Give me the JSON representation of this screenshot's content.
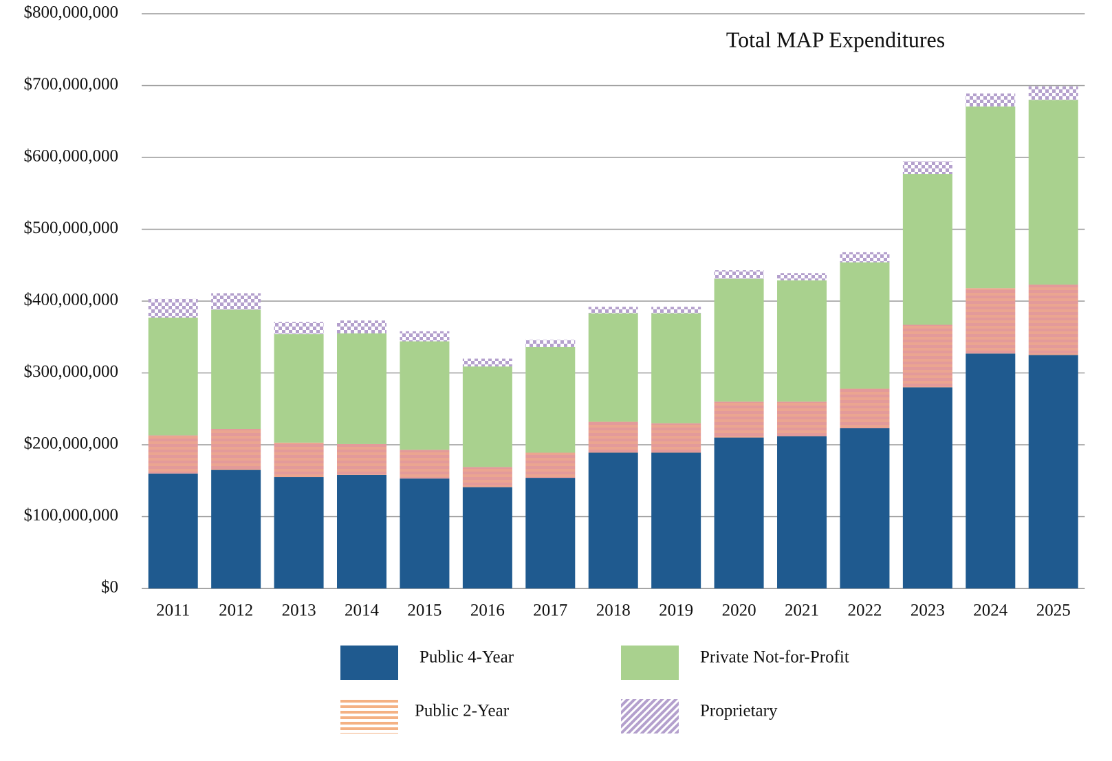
{
  "chart_data": {
    "type": "stacked_bar",
    "title": "Total MAP Expenditures",
    "categories": [
      "2011",
      "2012",
      "2013",
      "2014",
      "2015",
      "2016",
      "2017",
      "2018",
      "2019",
      "2020",
      "2021",
      "2022",
      "2023",
      "2024",
      "2025"
    ],
    "series": [
      {
        "name": "Public 4-Year",
        "color": "#1f5a8f",
        "pattern": "solid",
        "values": [
          160000000,
          165000000,
          155000000,
          158000000,
          153000000,
          141000000,
          154000000,
          189000000,
          189000000,
          210000000,
          212000000,
          223000000,
          280000000,
          327000000,
          325000000
        ]
      },
      {
        "name": "Public 2-Year",
        "color": "#f4b183",
        "pattern": "horizontal",
        "values": [
          53000000,
          57000000,
          48000000,
          43000000,
          40000000,
          28000000,
          35000000,
          43000000,
          41000000,
          50000000,
          48000000,
          55000000,
          87000000,
          91000000,
          98000000
        ]
      },
      {
        "name": "Private Not-for-Profit",
        "color": "#a9d18e",
        "pattern": "solid",
        "values": [
          164000000,
          166000000,
          151000000,
          154000000,
          151000000,
          140000000,
          147000000,
          151000000,
          153000000,
          171000000,
          169000000,
          176000000,
          210000000,
          253000000,
          257000000
        ]
      },
      {
        "name": "Proprietary",
        "color": "#b4a0cd",
        "pattern": "diagonal",
        "values": [
          26000000,
          23000000,
          17000000,
          18000000,
          14000000,
          11000000,
          10000000,
          9000000,
          9000000,
          12000000,
          10000000,
          14000000,
          18000000,
          18000000,
          19000000
        ]
      }
    ],
    "ylim": [
      0,
      800000000
    ],
    "yticks": [
      {
        "value": 0,
        "label": "$0"
      },
      {
        "value": 100000000,
        "label": "$100,000,000"
      },
      {
        "value": 200000000,
        "label": "$200,000,000"
      },
      {
        "value": 300000000,
        "label": "$300,000,000"
      },
      {
        "value": 400000000,
        "label": "$400,000,000"
      },
      {
        "value": 500000000,
        "label": "$500,000,000"
      },
      {
        "value": 600000000,
        "label": "$600,000,000"
      },
      {
        "value": 700000000,
        "label": "$700,000,000"
      },
      {
        "value": 800000000,
        "label": "$800,000,000"
      }
    ],
    "grid": true,
    "legend": "bottom"
  }
}
